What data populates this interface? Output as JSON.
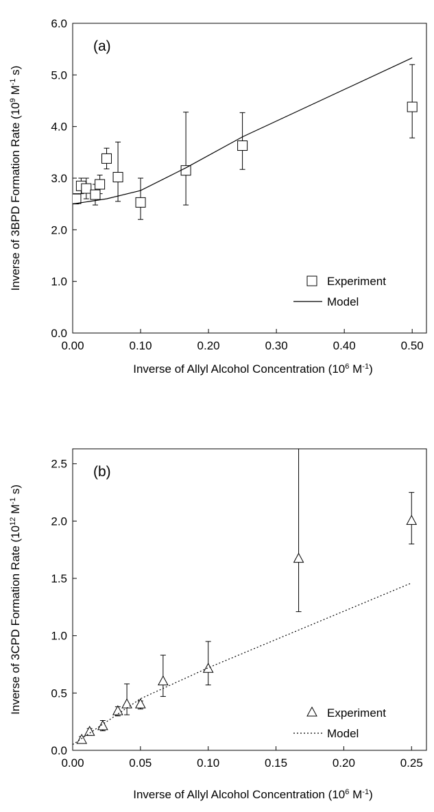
{
  "chart_data": [
    {
      "type": "scatter",
      "panel_label": "(a)",
      "xlabel": [
        "Inverse of Allyl Alcohol Concentration (10",
        "6",
        " M",
        "-1",
        ")"
      ],
      "ylabel": [
        "Inverse of 3BPD Formation Rate (10",
        "9",
        " M",
        "-1",
        " s)"
      ],
      "xlim": [
        0,
        0.521
      ],
      "ylim": [
        0,
        6
      ],
      "xticks": [
        {
          "value": 0,
          "label": "0.00"
        },
        {
          "value": 0.1,
          "label": "0.10"
        },
        {
          "value": 0.2,
          "label": "0.20"
        },
        {
          "value": 0.3,
          "label": "0.30"
        },
        {
          "value": 0.4,
          "label": "0.40"
        },
        {
          "value": 0.5,
          "label": "0.50"
        }
      ],
      "yticks": [
        {
          "value": 0,
          "label": "0.0"
        },
        {
          "value": 1,
          "label": "1.0"
        },
        {
          "value": 2,
          "label": "2.0"
        },
        {
          "value": 3,
          "label": "3.0"
        },
        {
          "value": 4,
          "label": "4.0"
        },
        {
          "value": 5,
          "label": "5.0"
        },
        {
          "value": 6,
          "label": "6.0"
        }
      ],
      "series": [
        {
          "name": "Experiment",
          "marker": "square",
          "color": "#000000",
          "x": [
            0.005,
            0.0125,
            0.02,
            0.0333,
            0.04,
            0.05,
            0.0667,
            0.1,
            0.1667,
            0.25,
            0.5
          ],
          "values": [
            2.6,
            2.85,
            2.8,
            2.68,
            2.88,
            3.38,
            3.02,
            2.53,
            3.15,
            3.63,
            4.38
          ],
          "lower": [
            2.5,
            2.7,
            2.6,
            2.48,
            2.7,
            3.18,
            2.55,
            2.2,
            2.48,
            3.17,
            3.78
          ],
          "upper": [
            2.7,
            3.0,
            3.0,
            2.88,
            3.06,
            3.58,
            3.7,
            3.0,
            4.28,
            4.27,
            5.2
          ]
        },
        {
          "name": "Model",
          "marker": "line",
          "dash": "none",
          "color": "#000000",
          "x": [
            0,
            0.05,
            0.1,
            0.1667,
            0.25,
            0.5
          ],
          "values": [
            2.5,
            2.6,
            2.76,
            3.2,
            3.8,
            5.33
          ]
        }
      ]
    },
    {
      "type": "scatter",
      "panel_label": "(b)",
      "xlabel": [
        "Inverse of Allyl Alcohol Concentration (10",
        "6",
        " M",
        "-1",
        ")"
      ],
      "ylabel": [
        "Inverse of 3CPD Formation Rate (10",
        "12",
        " M",
        "-1",
        " s)"
      ],
      "xlim": [
        0,
        0.261
      ],
      "ylim": [
        0,
        2.63
      ],
      "xticks": [
        {
          "value": 0,
          "label": "0.00"
        },
        {
          "value": 0.05,
          "label": "0.05"
        },
        {
          "value": 0.1,
          "label": "0.10"
        },
        {
          "value": 0.15,
          "label": "0.15"
        },
        {
          "value": 0.2,
          "label": "0.20"
        },
        {
          "value": 0.25,
          "label": "0.25"
        }
      ],
      "yticks": [
        {
          "value": 0,
          "label": "0.0"
        },
        {
          "value": 0.5,
          "label": "0.5"
        },
        {
          "value": 1,
          "label": "1.0"
        },
        {
          "value": 1.5,
          "label": "1.5"
        },
        {
          "value": 2,
          "label": "2.0"
        },
        {
          "value": 2.5,
          "label": "2.5"
        }
      ],
      "series": [
        {
          "name": "Experiment",
          "marker": "triangle",
          "color": "#000000",
          "x": [
            0.00667,
            0.0125,
            0.0222,
            0.0333,
            0.04,
            0.05,
            0.0667,
            0.1,
            0.1667,
            0.25
          ],
          "values": [
            0.09,
            0.16,
            0.21,
            0.34,
            0.4,
            0.4,
            0.6,
            0.71,
            1.67,
            2.0
          ],
          "lower": [
            0.06,
            0.13,
            0.17,
            0.3,
            0.31,
            0.36,
            0.47,
            0.57,
            1.21,
            1.8
          ],
          "upper": [
            0.12,
            0.19,
            0.26,
            0.38,
            0.58,
            0.43,
            0.83,
            0.95,
            2.7,
            2.25
          ]
        },
        {
          "name": "Model",
          "marker": "line",
          "dash": "2,3",
          "color": "#000000",
          "x": [
            0,
            0.04,
            0.05,
            0.1,
            0.25
          ],
          "values": [
            0.05,
            0.37,
            0.45,
            0.72,
            1.46
          ]
        }
      ]
    }
  ]
}
